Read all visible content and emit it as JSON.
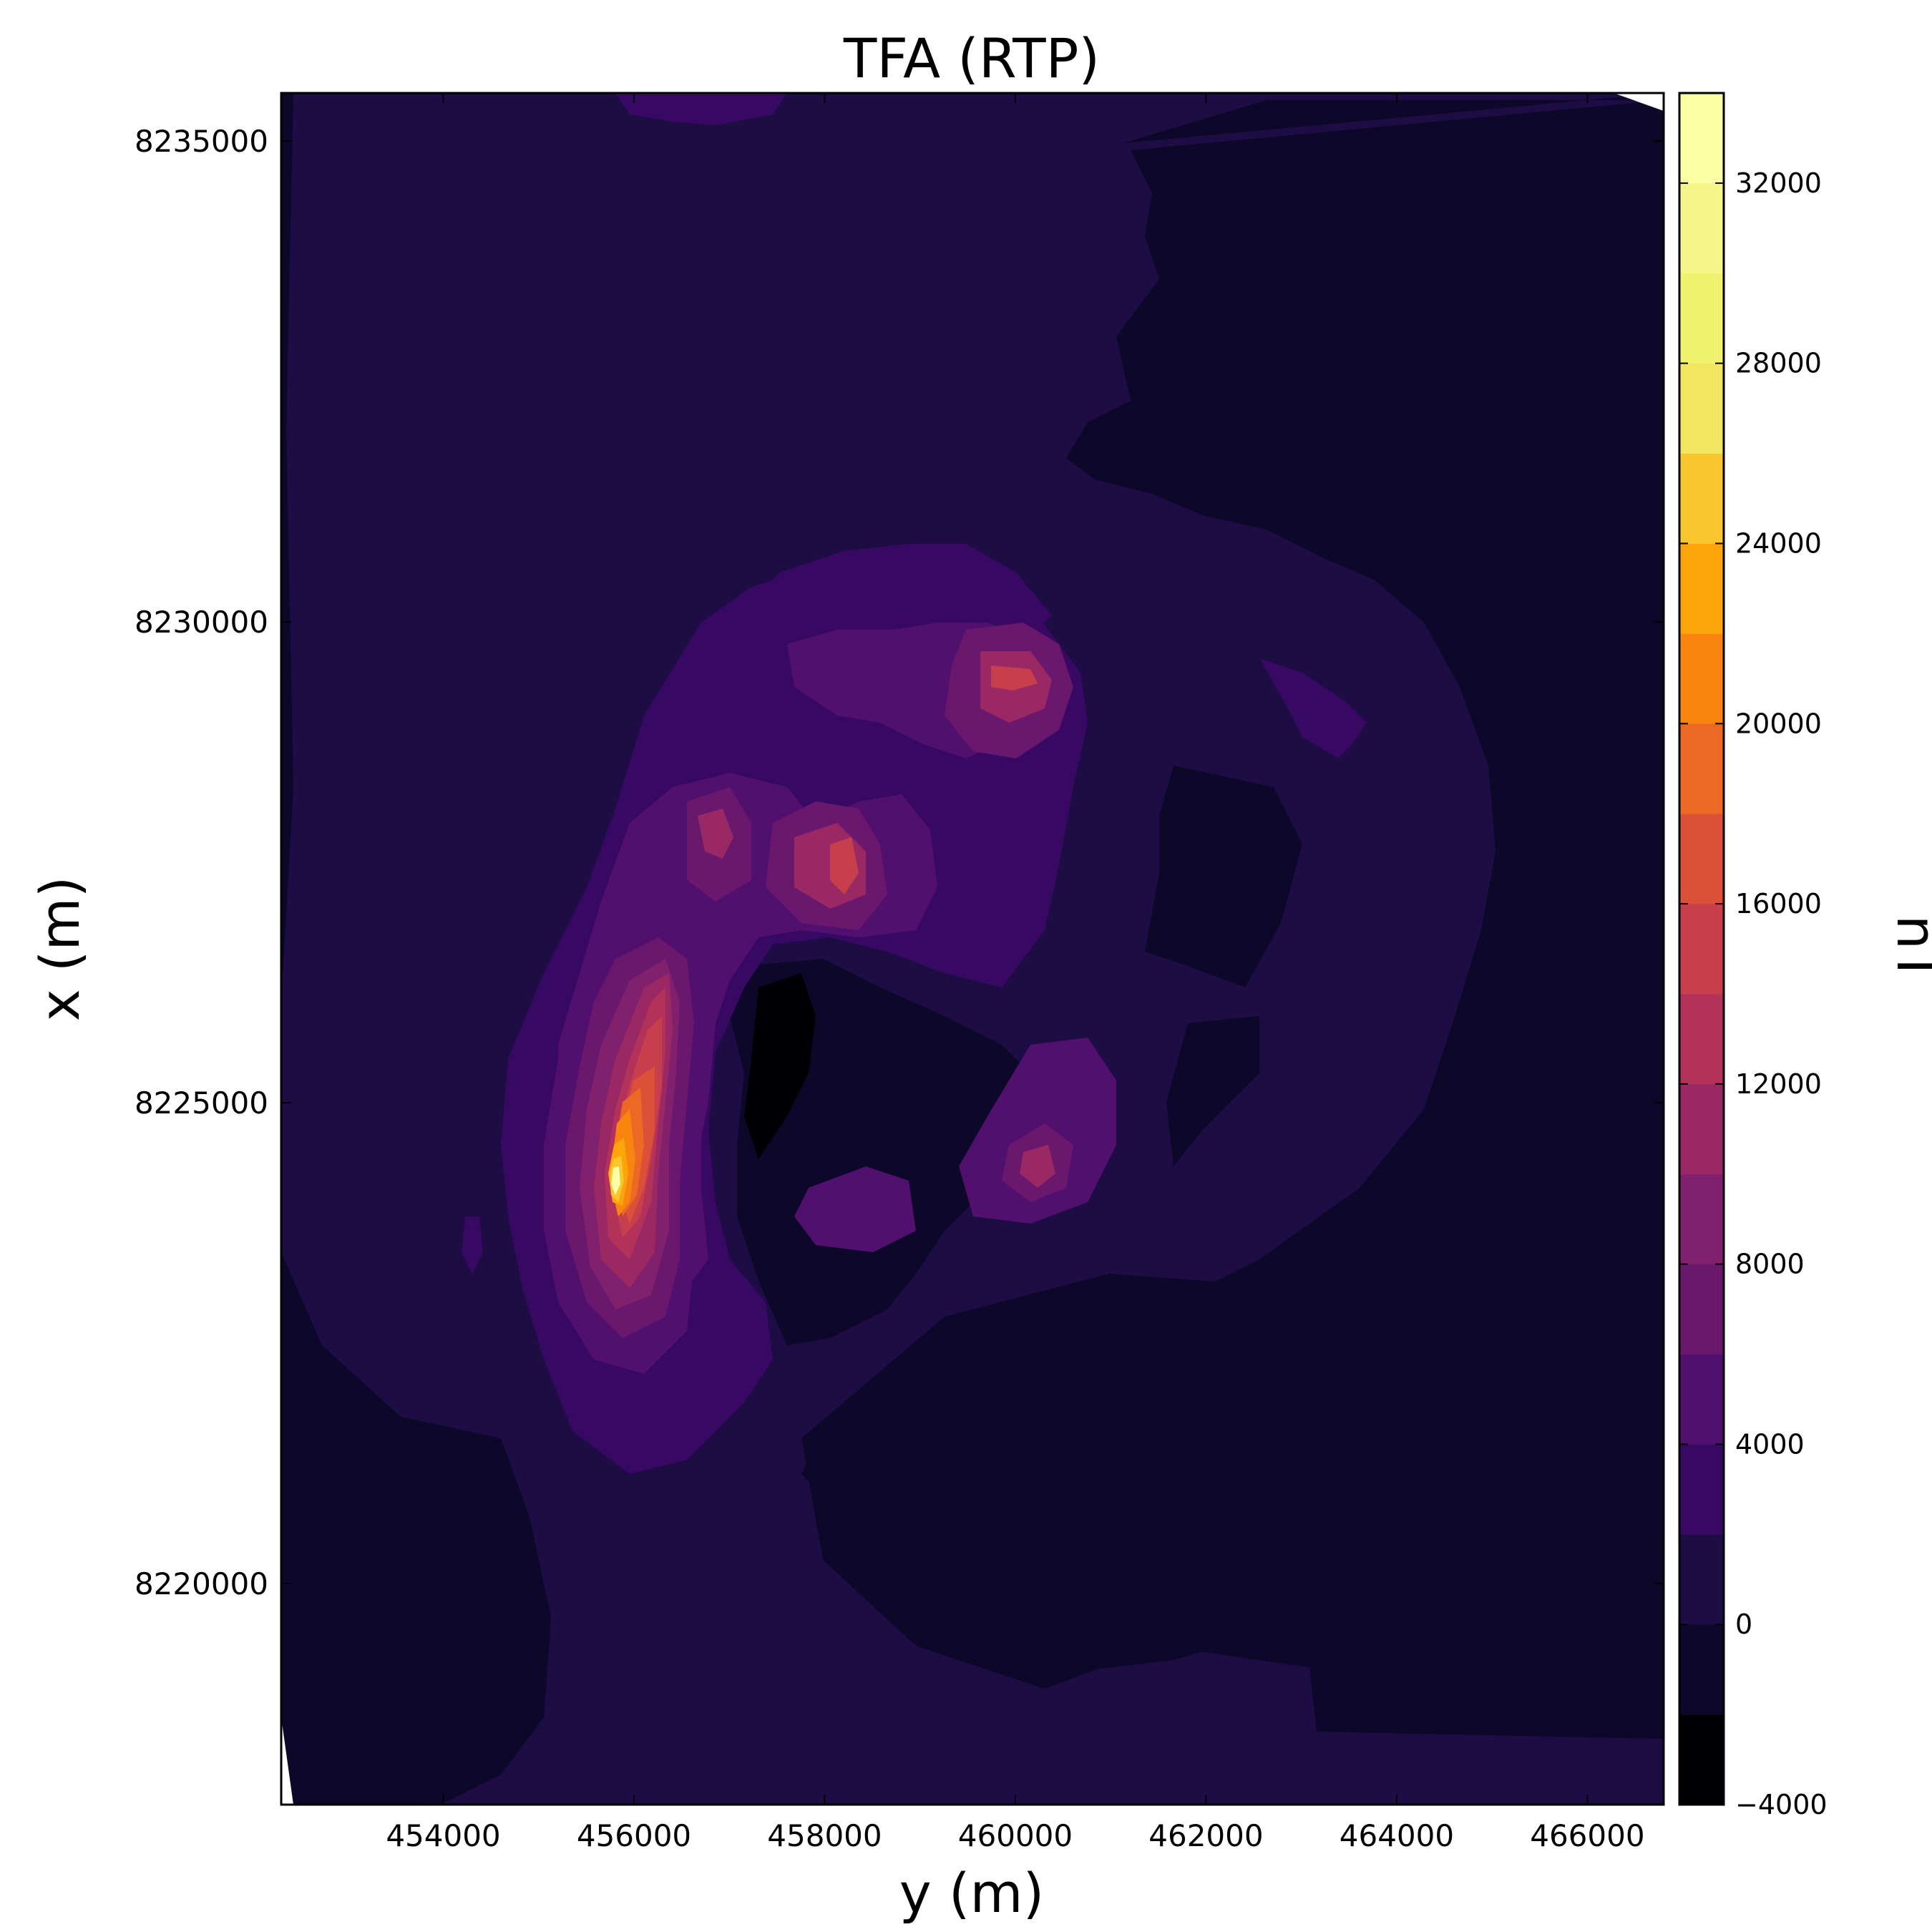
{
  "chart_data": {
    "type": "contourf",
    "title": "TFA (RTP)",
    "xlabel": "y (m)",
    "ylabel": "x (m)",
    "colorbar_label": "nT",
    "xlim": [
      452300,
      466800
    ],
    "ylim": [
      8217700,
      8235500
    ],
    "x_ticks": [
      454000,
      456000,
      458000,
      460000,
      462000,
      464000,
      466000
    ],
    "x_tick_labels": [
      "454000",
      "456000",
      "458000",
      "460000",
      "462000",
      "464000",
      "466000"
    ],
    "y_ticks": [
      8220000,
      8225000,
      8230000,
      8235000
    ],
    "y_tick_labels": [
      "8220000",
      "8225000",
      "8230000",
      "8235000"
    ],
    "colorbar_range": [
      -4000,
      34000
    ],
    "colorbar_ticks": [
      -4000,
      0,
      4000,
      8000,
      12000,
      16000,
      20000,
      24000,
      28000,
      32000
    ],
    "colorbar_tick_labels": [
      "−4000",
      "0",
      "4000",
      "8000",
      "12000",
      "16000",
      "20000",
      "24000",
      "28000",
      "32000"
    ],
    "levels": [
      -4000,
      -2000,
      0,
      2000,
      4000,
      6000,
      8000,
      10000,
      12000,
      14000,
      16000,
      18000,
      20000,
      22000,
      24000,
      26000,
      28000,
      30000,
      32000,
      34000
    ],
    "colormap": "inferno",
    "level_colors": [
      "#000004",
      "#0d0829",
      "#1e0c45",
      "#380962",
      "#51106e",
      "#6a176e",
      "#81206c",
      "#9a2865",
      "#b2325a",
      "#c73e4c",
      "#dc5039",
      "#ec6824",
      "#f8850f",
      "#fca50a",
      "#fac62d",
      "#f2e661",
      "#f0f26d",
      "#f6f58a",
      "#fcffa4"
    ],
    "features": [
      {
        "center": [
          455800,
          8224200
        ],
        "peak": 33000
      },
      {
        "center": [
          456600,
          8227700
        ],
        "peak": 13000
      },
      {
        "center": [
          458300,
          8227400
        ],
        "peak": 18000
      },
      {
        "center": [
          460000,
          8229300
        ],
        "peak": 17000
      },
      {
        "center": [
          460200,
          8224300
        ],
        "peak": 12000
      },
      {
        "center": [
          458500,
          8223800
        ],
        "peak": 8000
      },
      {
        "center": [
          463300,
          8229000
        ],
        "peak": 4500
      },
      {
        "center": [
          457500,
          8224800
        ],
        "peak": -3500
      }
    ]
  }
}
